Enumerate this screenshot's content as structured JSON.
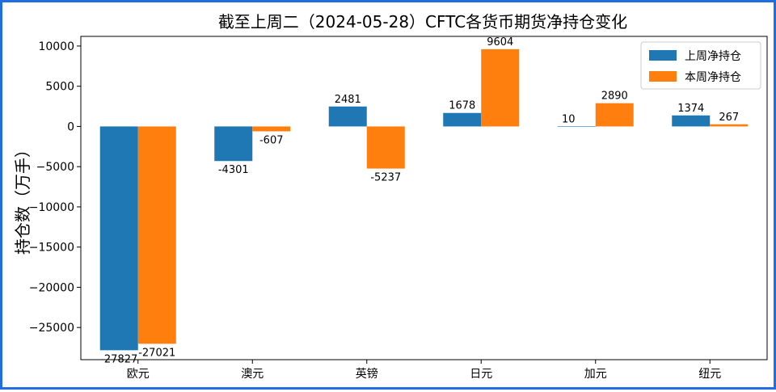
{
  "chart_data": {
    "type": "bar",
    "title": "截至上周二（2024-05-28）CFTC各货币期货净持仓变化",
    "xlabel": "",
    "ylabel": "持仓数（万手）",
    "categories": [
      "欧元",
      "澳元",
      "英镑",
      "日元",
      "加元",
      "纽元"
    ],
    "series": [
      {
        "name": "上周净持仓",
        "color": "#1f77b4",
        "values": [
          -27827,
          -4301,
          2481,
          1678,
          10,
          1374
        ]
      },
      {
        "name": "本周净持仓",
        "color": "#ff7f0e",
        "values": [
          -27021,
          -607,
          -5237,
          9604,
          2890,
          267
        ]
      }
    ],
    "ylim": [
      -29000,
      11200
    ],
    "yticks": [
      10000,
      5000,
      0,
      -5000,
      -10000,
      -15000,
      -20000,
      -25000
    ],
    "ytick_labels": [
      "10000",
      "5000",
      "0",
      "−5000",
      "−10000",
      "−15000",
      "−20000",
      "−25000"
    ],
    "legend_position": "top-right",
    "grid": false
  }
}
